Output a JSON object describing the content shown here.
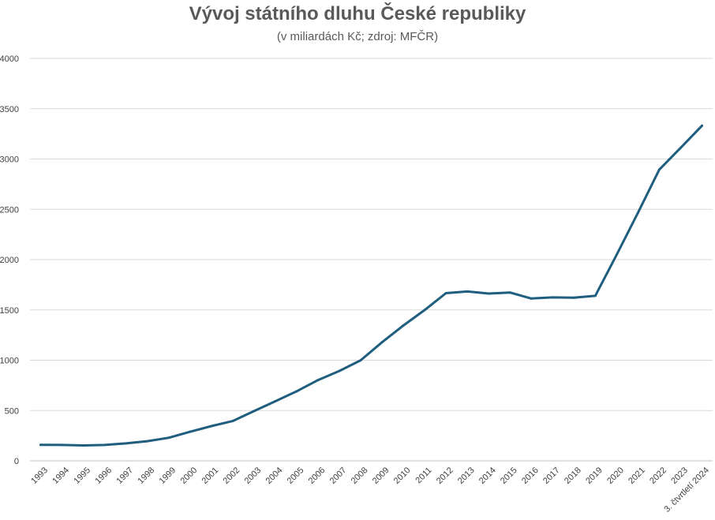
{
  "chart_data": {
    "type": "line",
    "title": "Vývoj státního dluhu České republiky",
    "subtitle": "(v miliardách Kč; zdroj: MFČR)",
    "xlabel": "",
    "ylabel": "",
    "ylim": [
      0,
      4000
    ],
    "yticks": [
      "0",
      "500",
      "1000",
      "1500",
      "2000",
      "2500",
      "3000",
      "3500",
      "4000"
    ],
    "grid": true,
    "categories": [
      "1993",
      "1994",
      "1995",
      "1996",
      "1997",
      "1998",
      "1999",
      "2000",
      "2001",
      "2002",
      "2003",
      "2004",
      "2005",
      "2006",
      "2007",
      "2008",
      "2009",
      "2010",
      "2011",
      "2012",
      "2013",
      "2014",
      "2015",
      "2016",
      "2017",
      "2018",
      "2019",
      "2020",
      "2021",
      "2022",
      "2023",
      "3. čtvrtletí 2024"
    ],
    "series": [
      {
        "values": [
          159,
          158,
          153,
          158,
          173,
          195,
          229,
          289,
          345,
          395,
          494,
          592,
          691,
          802,
          893,
          999,
          1178,
          1344,
          1499,
          1667,
          1683,
          1663,
          1673,
          1613,
          1624,
          1622,
          1640,
          2049,
          2466,
          2895,
          3111,
          3331
        ],
        "color": "#1F5E7E"
      }
    ]
  }
}
